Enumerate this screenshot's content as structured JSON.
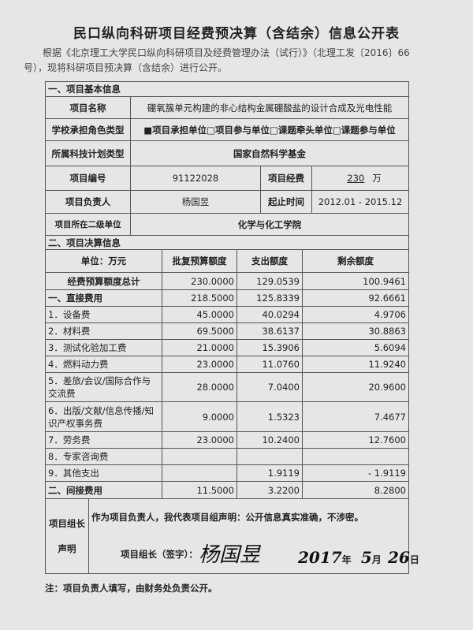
{
  "title": "民口纵向科研项目经费预决算（含结余）信息公开表",
  "intro": "根据《北京理工大学民口纵向科研项目及经费管理办法（试行）》（北理工发〔2016〕66号），现将科研项目预决算（含结余）进行公开。",
  "basic": {
    "section": "一、项目基本信息",
    "name_label": "项目名称",
    "name": "硼氧簇单元构建的非心结构金属硼酸盐的设计合成及光电性能",
    "role_label": "学校承担角色类型",
    "role": "■项目承担单位□项目参与单位□课题牵头单位□课题参与单位",
    "plan_label": "所属科技计划类型",
    "plan": "国家自然科学基金",
    "number_label": "项目编号",
    "number": "91122028",
    "funds_label": "项目经费",
    "funds": "230",
    "funds_unit": "万",
    "leader_label": "项目负责人",
    "leader": "杨国昱",
    "period_label": "起止时间",
    "period": "2012.01 - 2015.12",
    "unit_label": "项目所在二级单位",
    "unit": "化学与化工学院"
  },
  "settlement": {
    "section": "二、项目决算信息",
    "headers": [
      "单位：万元",
      "批复预算额度",
      "支出额度",
      "剩余额度"
    ],
    "rows": [
      [
        "经费预算额度总计",
        "230.0000",
        "129.0539",
        "100.9461"
      ],
      [
        "一、直接费用",
        "218.5000",
        "125.8339",
        "92.6661"
      ],
      [
        "1．设备费",
        "45.0000",
        "40.0294",
        "4.9706"
      ],
      [
        "2．材料费",
        "69.5000",
        "38.6137",
        "30.8863"
      ],
      [
        "3．测试化验加工费",
        "21.0000",
        "15.3906",
        "5.6094"
      ],
      [
        "4．燃料动力费",
        "23.0000",
        "11.0760",
        "11.9240"
      ],
      [
        "5．差旅/会议/国际合作与交流费",
        "28.0000",
        "7.0400",
        "20.9600"
      ],
      [
        "6．出版/文献/信息传播/知识产权事务费",
        "9.0000",
        "1.5323",
        "7.4677"
      ],
      [
        "7．劳务费",
        "23.0000",
        "10.2400",
        "12.7600"
      ],
      [
        "8．专家咨询费",
        "",
        "",
        ""
      ],
      [
        "9．其他支出",
        "",
        "1.9119",
        "- 1.9119"
      ],
      [
        "二、间接费用",
        "11.5000",
        "3.2200",
        "8.2800"
      ]
    ]
  },
  "declaration": {
    "label1": "项目组长",
    "label2": "声明",
    "text": "作为项目负责人，我代表项目组声明：公开信息真实准确，不涉密。",
    "sign_label": "项目组长（签字）：",
    "signature": "杨国昱",
    "year": "2017",
    "year_unit": "年",
    "month": "5",
    "month_unit": "月",
    "day": "26",
    "day_unit": "日"
  },
  "footnote": "注：项目负责人填写，由财务处负责公开。"
}
